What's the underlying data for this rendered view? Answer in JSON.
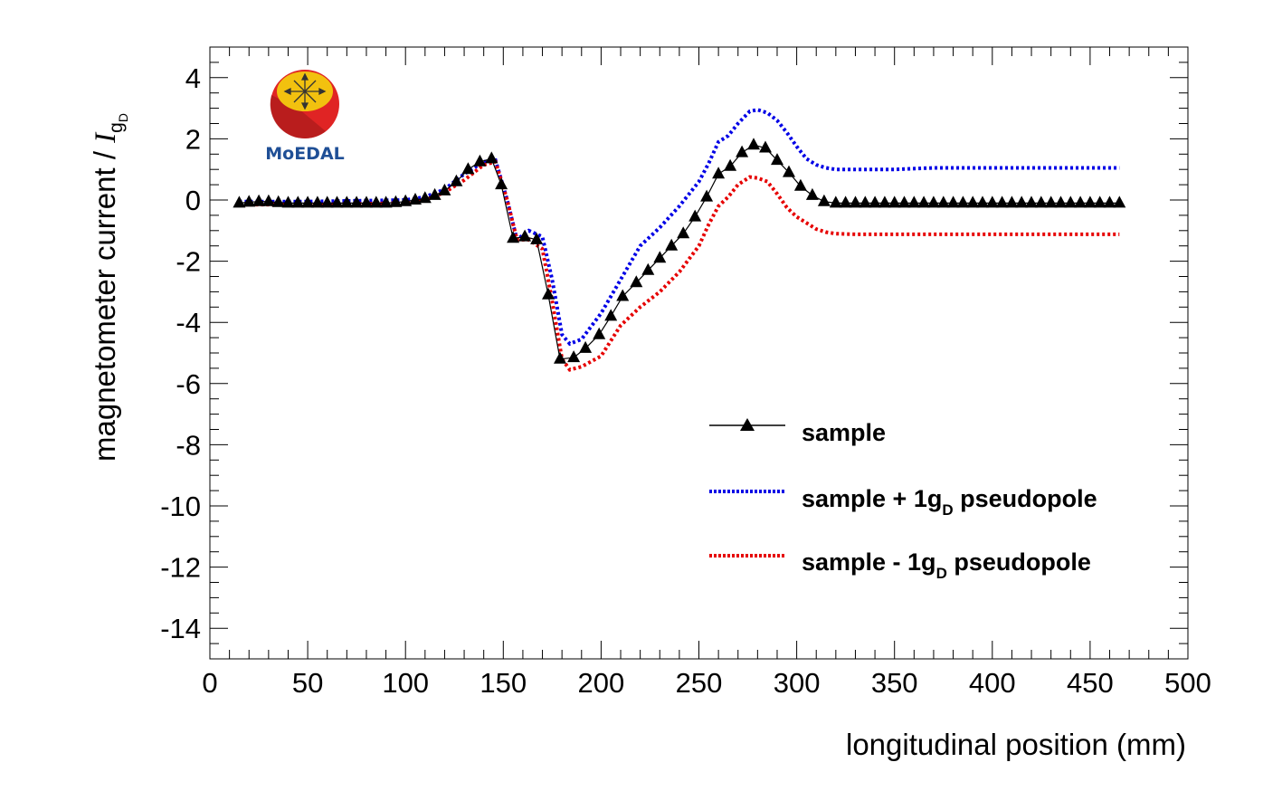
{
  "colors": {
    "sample": "#000000",
    "plus": "#0000e6",
    "minus": "#e60000",
    "logo_outer": "#e02424",
    "logo_inner": "#f2c10f",
    "logo_text": "#1f4f96"
  },
  "logo": {
    "text": "MoEDAL"
  },
  "chart_data": {
    "type": "line",
    "title": "",
    "xlabel": "longitudinal position (mm)",
    "ylabel_main": "magnetometer current / ",
    "ylabel_symbol": "I",
    "ylabel_sub": "g",
    "ylabel_subsub": "D",
    "xlim": [
      0,
      500
    ],
    "ylim": [
      -15,
      5
    ],
    "xticks": [
      0,
      50,
      100,
      150,
      200,
      250,
      300,
      350,
      400,
      450,
      500
    ],
    "xtick_labels": [
      "0",
      "50",
      "100",
      "150",
      "200",
      "250",
      "300",
      "350",
      "400",
      "450",
      "500"
    ],
    "yticks": [
      4,
      2,
      0,
      -2,
      -4,
      -6,
      -8,
      -10,
      -12,
      -14
    ],
    "ytick_labels": [
      "4",
      "2",
      "0",
      "-2",
      "-4",
      "-6",
      "-8",
      "-10",
      "-12",
      "-14"
    ],
    "grid": false,
    "legend_position": "lower-right",
    "legend": [
      {
        "id": "sample",
        "label": "sample",
        "sub": "",
        "tail": ""
      },
      {
        "id": "plus",
        "label": "sample + 1g",
        "sub": "D",
        "tail": " pseudopole"
      },
      {
        "id": "minus",
        "label": "sample - 1g",
        "sub": "D",
        "tail": " pseudopole"
      }
    ],
    "series": [
      {
        "name": "sample",
        "style": "line-triangles",
        "points": [
          [
            15,
            -0.1
          ],
          [
            20,
            -0.07
          ],
          [
            25,
            -0.05
          ],
          [
            30,
            -0.05
          ],
          [
            35,
            -0.08
          ],
          [
            40,
            -0.1
          ],
          [
            45,
            -0.1
          ],
          [
            50,
            -0.1
          ],
          [
            55,
            -0.1
          ],
          [
            60,
            -0.1
          ],
          [
            65,
            -0.1
          ],
          [
            70,
            -0.1
          ],
          [
            75,
            -0.1
          ],
          [
            80,
            -0.1
          ],
          [
            85,
            -0.1
          ],
          [
            90,
            -0.1
          ],
          [
            95,
            -0.08
          ],
          [
            100,
            -0.05
          ],
          [
            105,
            0
          ],
          [
            110,
            0.05
          ],
          [
            115,
            0.15
          ],
          [
            120,
            0.3
          ],
          [
            126,
            0.6
          ],
          [
            132,
            1.0
          ],
          [
            138,
            1.25
          ],
          [
            144,
            1.35
          ],
          [
            149,
            0.5
          ],
          [
            155,
            -1.25
          ],
          [
            161,
            -1.2
          ],
          [
            167,
            -1.3
          ],
          [
            173,
            -3.1
          ],
          [
            179,
            -5.2
          ],
          [
            186,
            -5.15
          ],
          [
            192,
            -4.85
          ],
          [
            199,
            -4.4
          ],
          [
            205,
            -3.8
          ],
          [
            211,
            -3.15
          ],
          [
            218,
            -2.7
          ],
          [
            224,
            -2.3
          ],
          [
            230,
            -1.9
          ],
          [
            236,
            -1.5
          ],
          [
            242,
            -1.1
          ],
          [
            248,
            -0.55
          ],
          [
            254,
            0.1
          ],
          [
            260,
            0.85
          ],
          [
            266,
            1.1
          ],
          [
            272,
            1.55
          ],
          [
            278,
            1.8
          ],
          [
            284,
            1.7
          ],
          [
            290,
            1.3
          ],
          [
            296,
            0.9
          ],
          [
            302,
            0.45
          ],
          [
            308,
            0.15
          ],
          [
            314,
            -0.05
          ],
          [
            320,
            -0.1
          ],
          [
            325,
            -0.1
          ],
          [
            330,
            -0.1
          ],
          [
            335,
            -0.1
          ],
          [
            340,
            -0.1
          ],
          [
            345,
            -0.1
          ],
          [
            350,
            -0.1
          ],
          [
            355,
            -0.1
          ],
          [
            360,
            -0.1
          ],
          [
            365,
            -0.1
          ],
          [
            370,
            -0.1
          ],
          [
            375,
            -0.1
          ],
          [
            380,
            -0.1
          ],
          [
            385,
            -0.1
          ],
          [
            390,
            -0.1
          ],
          [
            395,
            -0.1
          ],
          [
            400,
            -0.1
          ],
          [
            405,
            -0.1
          ],
          [
            410,
            -0.1
          ],
          [
            415,
            -0.1
          ],
          [
            420,
            -0.1
          ],
          [
            425,
            -0.1
          ],
          [
            430,
            -0.1
          ],
          [
            435,
            -0.1
          ],
          [
            440,
            -0.1
          ],
          [
            445,
            -0.1
          ],
          [
            450,
            -0.1
          ],
          [
            455,
            -0.1
          ],
          [
            460,
            -0.1
          ],
          [
            465,
            -0.1
          ]
        ]
      },
      {
        "name": "sample + 1gD pseudopole",
        "style": "dotted",
        "points": [
          [
            15,
            -0.05
          ],
          [
            50,
            -0.05
          ],
          [
            100,
            0.0
          ],
          [
            110,
            0.1
          ],
          [
            120,
            0.35
          ],
          [
            130,
            0.85
          ],
          [
            140,
            1.25
          ],
          [
            146,
            1.3
          ],
          [
            152,
            0.0
          ],
          [
            157,
            -1.3
          ],
          [
            163,
            -1.0
          ],
          [
            170,
            -1.2
          ],
          [
            175,
            -2.6
          ],
          [
            180,
            -4.4
          ],
          [
            184,
            -4.7
          ],
          [
            190,
            -4.55
          ],
          [
            200,
            -3.7
          ],
          [
            210,
            -2.6
          ],
          [
            220,
            -1.5
          ],
          [
            230,
            -0.9
          ],
          [
            240,
            -0.2
          ],
          [
            250,
            0.6
          ],
          [
            255,
            1.2
          ],
          [
            260,
            1.9
          ],
          [
            265,
            2.1
          ],
          [
            270,
            2.5
          ],
          [
            276,
            2.9
          ],
          [
            280,
            2.95
          ],
          [
            285,
            2.85
          ],
          [
            290,
            2.6
          ],
          [
            295,
            2.2
          ],
          [
            300,
            1.75
          ],
          [
            305,
            1.35
          ],
          [
            310,
            1.15
          ],
          [
            315,
            1.05
          ],
          [
            320,
            1.0
          ],
          [
            330,
            1.0
          ],
          [
            350,
            1.0
          ],
          [
            370,
            1.05
          ],
          [
            400,
            1.05
          ],
          [
            430,
            1.05
          ],
          [
            465,
            1.05
          ]
        ]
      },
      {
        "name": "sample - 1gD pseudopole",
        "style": "dotted",
        "points": [
          [
            15,
            -0.15
          ],
          [
            50,
            -0.15
          ],
          [
            100,
            -0.1
          ],
          [
            110,
            0.0
          ],
          [
            120,
            0.25
          ],
          [
            130,
            0.65
          ],
          [
            140,
            1.15
          ],
          [
            146,
            1.25
          ],
          [
            152,
            0.0
          ],
          [
            157,
            -1.3
          ],
          [
            163,
            -1.3
          ],
          [
            170,
            -1.6
          ],
          [
            175,
            -3.3
          ],
          [
            180,
            -5.2
          ],
          [
            184,
            -5.55
          ],
          [
            190,
            -5.45
          ],
          [
            200,
            -5.1
          ],
          [
            210,
            -4.1
          ],
          [
            220,
            -3.5
          ],
          [
            230,
            -3.0
          ],
          [
            240,
            -2.35
          ],
          [
            250,
            -1.5
          ],
          [
            255,
            -0.8
          ],
          [
            260,
            -0.2
          ],
          [
            265,
            0.1
          ],
          [
            270,
            0.5
          ],
          [
            276,
            0.75
          ],
          [
            280,
            0.72
          ],
          [
            285,
            0.6
          ],
          [
            290,
            0.2
          ],
          [
            295,
            -0.25
          ],
          [
            300,
            -0.55
          ],
          [
            305,
            -0.75
          ],
          [
            310,
            -0.95
          ],
          [
            315,
            -1.05
          ],
          [
            320,
            -1.1
          ],
          [
            330,
            -1.12
          ],
          [
            350,
            -1.12
          ],
          [
            370,
            -1.12
          ],
          [
            400,
            -1.12
          ],
          [
            430,
            -1.12
          ],
          [
            465,
            -1.12
          ]
        ]
      }
    ]
  }
}
